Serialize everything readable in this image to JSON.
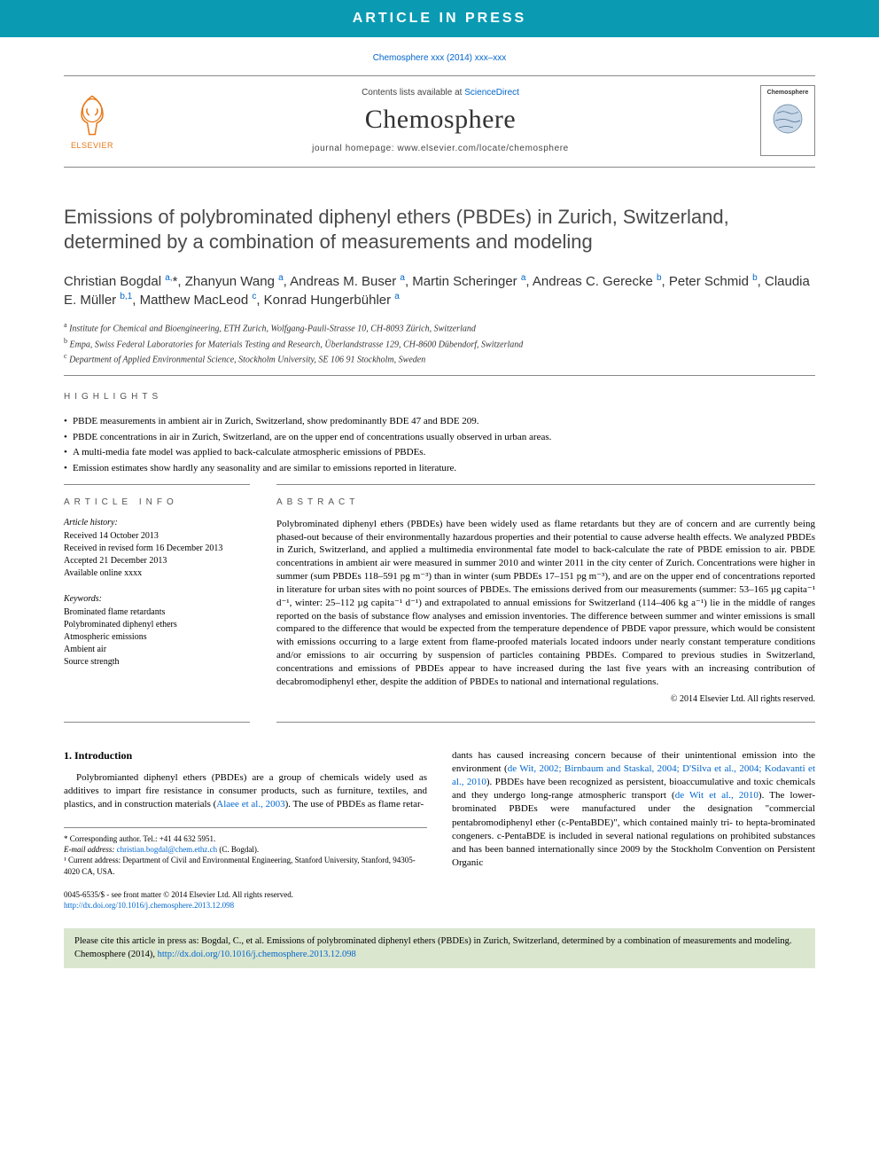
{
  "banner": {
    "text": "ARTICLE IN PRESS"
  },
  "refline": "Chemosphere xxx (2014) xxx–xxx",
  "masthead": {
    "contents_prefix": "Contents lists available at ",
    "contents_link": "ScienceDirect",
    "journal": "Chemosphere",
    "homepage_prefix": "journal homepage: ",
    "homepage": "www.elsevier.com/locate/chemosphere",
    "publisher_label": "ELSEVIER",
    "logo_color": "#e67817",
    "cover_label": "Chemosphere"
  },
  "title": "Emissions of polybrominated diphenyl ethers (PBDEs) in Zurich, Switzerland, determined by a combination of measurements and modeling",
  "authors_html": "Christian Bogdal <sup>a,</sup><span class='star'>*</span>, Zhanyun Wang <sup>a</sup>, Andreas M. Buser <sup>a</sup>, Martin Scheringer <sup>a</sup>, Andreas C. Gerecke <sup>b</sup>, Peter Schmid <sup>b</sup>, Claudia E. Müller <sup>b,1</sup>, Matthew MacLeod <sup>c</sup>, Konrad Hungerbühler <sup>a</sup>",
  "affiliations": [
    "<sup>a</sup> Institute for Chemical and Bioengineering, ETH Zurich, Wolfgang-Pauli-Strasse 10, CH-8093 Zürich, Switzerland",
    "<sup>b</sup> Empa, Swiss Federal Laboratories for Materials Testing and Research, Überlandstrasse 129, CH-8600 Dübendorf, Switzerland",
    "<sup>c</sup> Department of Applied Environmental Science, Stockholm University, SE 106 91 Stockholm, Sweden"
  ],
  "highlights_label": "HIGHLIGHTS",
  "highlights": [
    "PBDE measurements in ambient air in Zurich, Switzerland, show predominantly BDE 47 and BDE 209.",
    "PBDE concentrations in air in Zurich, Switzerland, are on the upper end of concentrations usually observed in urban areas.",
    "A multi-media fate model was applied to back-calculate atmospheric emissions of PBDEs.",
    "Emission estimates show hardly any seasonality and are similar to emissions reported in literature."
  ],
  "article_info_label": "ARTICLE INFO",
  "history_label": "Article history:",
  "history": [
    "Received 14 October 2013",
    "Received in revised form 16 December 2013",
    "Accepted 21 December 2013",
    "Available online xxxx"
  ],
  "keywords_label": "Keywords:",
  "keywords": [
    "Brominated flame retardants",
    "Polybrominated diphenyl ethers",
    "Atmospheric emissions",
    "Ambient air",
    "Source strength"
  ],
  "abstract_label": "ABSTRACT",
  "abstract": "Polybrominated diphenyl ethers (PBDEs) have been widely used as flame retardants but they are of concern and are currently being phased-out because of their environmentally hazardous properties and their potential to cause adverse health effects. We analyzed PBDEs in Zurich, Switzerland, and applied a multimedia environmental fate model to back-calculate the rate of PBDE emission to air. PBDE concentrations in ambient air were measured in summer 2010 and winter 2011 in the city center of Zurich. Concentrations were higher in summer (sum PBDEs 118–591 pg m⁻³) than in winter (sum PBDEs 17–151 pg m⁻³), and are on the upper end of concentrations reported in literature for urban sites with no point sources of PBDEs. The emissions derived from our measurements (summer: 53–165 µg capita⁻¹ d⁻¹, winter: 25–112 µg capita⁻¹ d⁻¹) and extrapolated to annual emissions for Switzerland (114–406 kg a⁻¹) lie in the middle of ranges reported on the basis of substance flow analyses and emission inventories. The difference between summer and winter emissions is small compared to the difference that would be expected from the temperature dependence of PBDE vapor pressure, which would be consistent with emissions occurring to a large extent from flame-proofed materials located indoors under nearly constant temperature conditions and/or emissions to air occurring by suspension of particles containing PBDEs. Compared to previous studies in Switzerland, concentrations and emissions of PBDEs appear to have increased during the last five years with an increasing contribution of decabromodiphenyl ether, despite the addition of PBDEs to national and international regulations.",
  "copyright": "© 2014 Elsevier Ltd. All rights reserved.",
  "intro_heading": "1. Introduction",
  "intro_col1": "Polybromianted diphenyl ethers (PBDEs) are a group of chemicals widely used as additives to impart fire resistance in consumer products, such as furniture, textiles, and plastics, and in construction materials (<a>Alaee et al., 2003</a>). The use of PBDEs as flame retar-",
  "intro_col2": "dants has caused increasing concern because of their unintentional emission into the environment (<a>de Wit, 2002; Birnbaum and Staskal, 2004; D'Silva et al., 2004; Kodavanti et al., 2010</a>). PBDEs have been recognized as persistent, bioaccumulative and toxic chemicals and they undergo long-range atmospheric transport (<a>de Wit et al., 2010</a>). The lower-brominated PBDEs were manufactured under the designation \"commercial pentabromodiphenyl ether (c-PentaBDE)\", which contained mainly tri- to hepta-brominated congeners. c-PentaBDE is included in several national regulations on prohibited substances and has been banned internationally since 2009 by the Stockholm Convention on Persistent Organic",
  "footnotes": {
    "corr_label": "* Corresponding author. Tel.: +41 44 632 5951.",
    "email_label": "E-mail address: ",
    "email": "christian.bogdal@chem.ethz.ch",
    "email_paren": " (C. Bogdal).",
    "note1": "¹ Current address: Department of Civil and Environmental Engineering, Stanford University, Stanford, 94305-4020 CA, USA."
  },
  "doi": {
    "line1": "0045-6535/$ - see front matter © 2014 Elsevier Ltd. All rights reserved.",
    "line2_prefix": "http://dx.doi.org/",
    "line2_link": "10.1016/j.chemosphere.2013.12.098"
  },
  "citebox": {
    "text_prefix": "Please cite this article in press as: Bogdal, C., et al. Emissions of polybrominated diphenyl ethers (PBDEs) in Zurich, Switzerland, determined by a combination of measurements and modeling. Chemosphere (2014), ",
    "link": "http://dx.doi.org/10.1016/j.chemosphere.2013.12.098"
  },
  "colors": {
    "banner_bg": "#0a9bb3",
    "link": "#0066cc",
    "elsevier_orange": "#e67817",
    "cite_bg": "#dbe6cf"
  }
}
